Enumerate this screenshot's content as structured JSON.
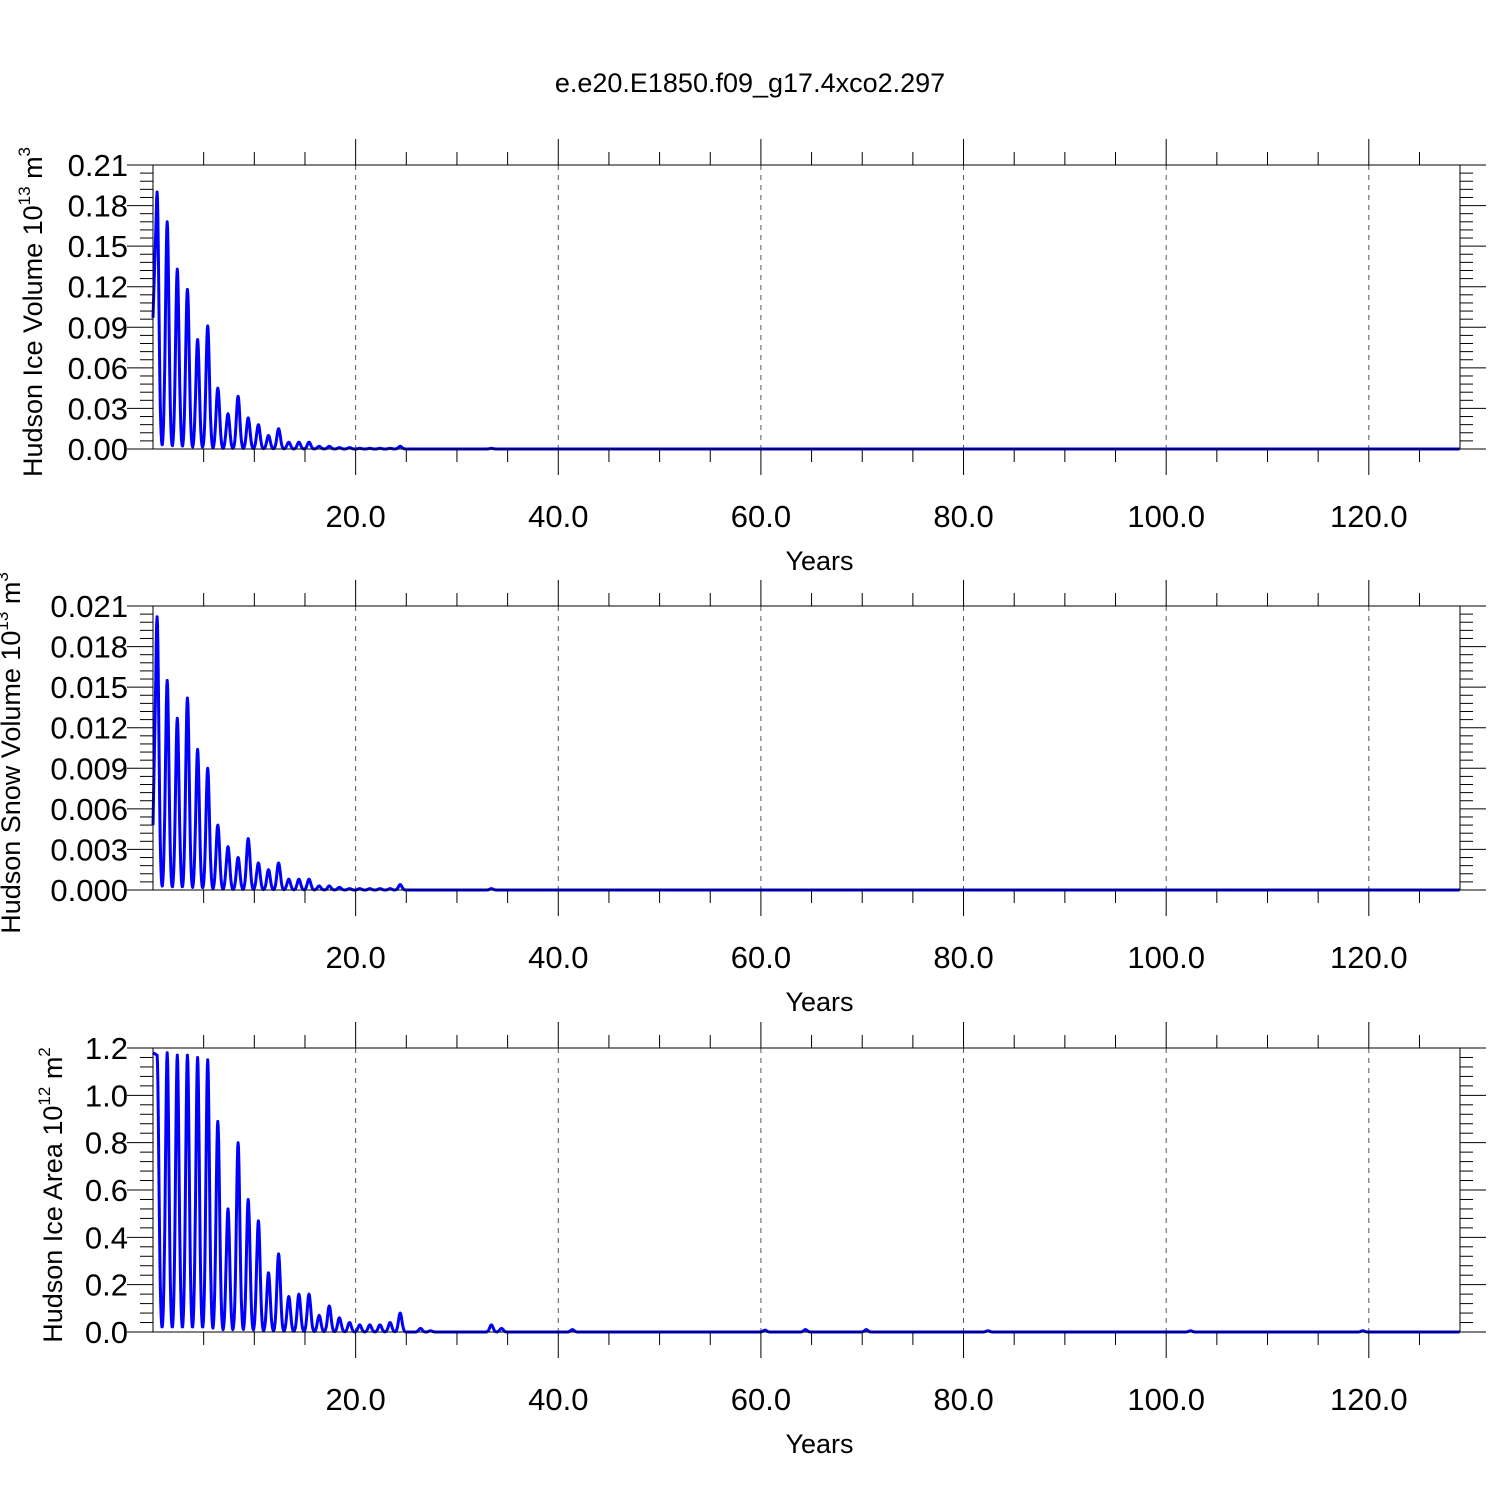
{
  "title": "e.e20.E1850.f09_g17.4xco2.297",
  "colors": {
    "series": "#0000ff",
    "axes": "#000000",
    "grid": "#555555"
  },
  "chart_data": [
    {
      "type": "line",
      "xlabel": "Years",
      "ylabel_main": "Hudson Ice Volume 10",
      "ylabel_exp": "13",
      "ylabel_unit": " m",
      "ylabel_unit_exp": "3",
      "xlim": [
        0,
        129
      ],
      "ylim": [
        0,
        0.21
      ],
      "xticks": [
        20,
        40,
        60,
        80,
        100,
        120
      ],
      "xtick_labels": [
        "20.0",
        "40.0",
        "60.0",
        "80.0",
        "100.0",
        "120.0"
      ],
      "yticks": [
        0,
        0.03,
        0.06,
        0.09,
        0.12,
        0.15,
        0.18,
        0.21
      ],
      "ytick_labels": [
        "0.00",
        "0.03",
        "0.06",
        "0.09",
        "0.12",
        "0.15",
        "0.18",
        "0.21"
      ],
      "grid": "vertical dashed",
      "series": [
        {
          "start": 0.097,
          "peaks": [
            [
              0.4,
              0.19
            ],
            [
              1.4,
              0.168
            ],
            [
              2.4,
              0.133
            ],
            [
              3.4,
              0.118
            ],
            [
              4.4,
              0.081
            ],
            [
              5.4,
              0.091
            ],
            [
              6.4,
              0.045
            ],
            [
              7.4,
              0.026
            ],
            [
              8.4,
              0.039
            ],
            [
              9.4,
              0.023
            ],
            [
              10.4,
              0.018
            ],
            [
              11.4,
              0.01
            ],
            [
              12.4,
              0.015
            ],
            [
              13.4,
              0.005
            ],
            [
              14.4,
              0.005
            ],
            [
              15.4,
              0.005
            ],
            [
              16.4,
              0.002
            ],
            [
              17.4,
              0.002
            ],
            [
              18.4,
              0.001
            ],
            [
              19.4,
              0.001
            ],
            [
              20.4,
              0.0005
            ],
            [
              21.4,
              0.0005
            ],
            [
              22.4,
              0.0005
            ],
            [
              23.4,
              0.0005
            ],
            [
              24.4,
              0.002
            ],
            [
              33.4,
              0.0005
            ]
          ]
        }
      ]
    },
    {
      "type": "line",
      "xlabel": "Years",
      "ylabel_main": "Hudson Snow Volume 10",
      "ylabel_exp": "13",
      "ylabel_unit": " m",
      "ylabel_unit_exp": "3",
      "xlim": [
        0,
        129
      ],
      "ylim": [
        0,
        0.021
      ],
      "xticks": [
        20,
        40,
        60,
        80,
        100,
        120
      ],
      "xtick_labels": [
        "20.0",
        "40.0",
        "60.0",
        "80.0",
        "100.0",
        "120.0"
      ],
      "yticks": [
        0,
        0.003,
        0.006,
        0.009,
        0.012,
        0.015,
        0.018,
        0.021
      ],
      "ytick_labels": [
        "0.000",
        "0.003",
        "0.006",
        "0.009",
        "0.012",
        "0.015",
        "0.018",
        "0.021"
      ],
      "grid": "vertical dashed",
      "series": [
        {
          "start": 0.0048,
          "peaks": [
            [
              0.4,
              0.0202
            ],
            [
              1.4,
              0.0155
            ],
            [
              2.4,
              0.0127
            ],
            [
              3.4,
              0.0142
            ],
            [
              4.4,
              0.0104
            ],
            [
              5.4,
              0.009
            ],
            [
              6.4,
              0.0048
            ],
            [
              7.4,
              0.0032
            ],
            [
              8.4,
              0.0024
            ],
            [
              9.4,
              0.0038
            ],
            [
              10.4,
              0.002
            ],
            [
              11.4,
              0.0015
            ],
            [
              12.4,
              0.002
            ],
            [
              13.4,
              0.0008
            ],
            [
              14.4,
              0.0008
            ],
            [
              15.4,
              0.0008
            ],
            [
              16.4,
              0.0003
            ],
            [
              17.4,
              0.0003
            ],
            [
              18.4,
              0.0002
            ],
            [
              19.4,
              0.0001
            ],
            [
              20.4,
              0.0001
            ],
            [
              21.4,
              0.0001
            ],
            [
              22.4,
              0.0001
            ],
            [
              23.4,
              0.0001
            ],
            [
              24.4,
              0.0004
            ],
            [
              33.4,
              0.0001
            ]
          ]
        }
      ]
    },
    {
      "type": "line",
      "xlabel": "Years",
      "ylabel_main": "Hudson Ice Area 10",
      "ylabel_exp": "12",
      "ylabel_unit": " m",
      "ylabel_unit_exp": "2",
      "xlim": [
        0,
        129
      ],
      "ylim": [
        0,
        1.2
      ],
      "xticks": [
        20,
        40,
        60,
        80,
        100,
        120
      ],
      "xtick_labels": [
        "20.0",
        "40.0",
        "60.0",
        "80.0",
        "100.0",
        "120.0"
      ],
      "yticks": [
        0,
        0.2,
        0.4,
        0.6,
        0.8,
        1.0,
        1.2
      ],
      "ytick_labels": [
        "0.0",
        "0.2",
        "0.4",
        "0.6",
        "0.8",
        "1.0",
        "1.2"
      ],
      "grid": "vertical dashed",
      "series": [
        {
          "start": 1.18,
          "peaks": [
            [
              0.4,
              1.17
            ],
            [
              1.4,
              1.18
            ],
            [
              2.4,
              1.17
            ],
            [
              3.4,
              1.17
            ],
            [
              4.4,
              1.16
            ],
            [
              5.4,
              1.15
            ],
            [
              6.4,
              0.89
            ],
            [
              7.4,
              0.52
            ],
            [
              8.4,
              0.8
            ],
            [
              9.4,
              0.56
            ],
            [
              10.4,
              0.47
            ],
            [
              11.4,
              0.25
            ],
            [
              12.4,
              0.33
            ],
            [
              13.4,
              0.15
            ],
            [
              14.4,
              0.16
            ],
            [
              15.4,
              0.16
            ],
            [
              16.4,
              0.07
            ],
            [
              17.4,
              0.11
            ],
            [
              18.4,
              0.06
            ],
            [
              19.4,
              0.04
            ],
            [
              20.4,
              0.03
            ],
            [
              21.4,
              0.03
            ],
            [
              22.4,
              0.03
            ],
            [
              23.4,
              0.04
            ],
            [
              24.4,
              0.08
            ],
            [
              26.4,
              0.015
            ],
            [
              27.4,
              0.005
            ],
            [
              33.4,
              0.03
            ],
            [
              34.4,
              0.015
            ],
            [
              41.4,
              0.01
            ],
            [
              60.4,
              0.008
            ],
            [
              64.4,
              0.01
            ],
            [
              70.4,
              0.01
            ],
            [
              82.4,
              0.005
            ],
            [
              102.4,
              0.005
            ],
            [
              119.4,
              0.005
            ]
          ]
        }
      ]
    }
  ]
}
